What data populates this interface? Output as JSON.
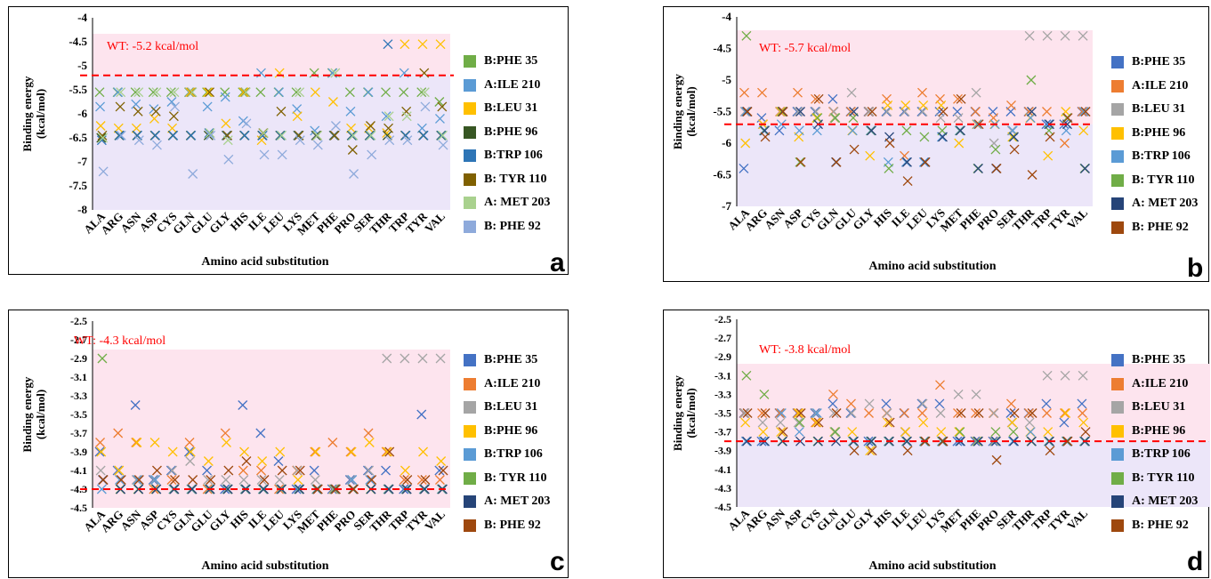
{
  "chart_data": [
    {
      "type": "scatter",
      "panel_label": "a",
      "ylabel": "Binding energy (kcal/mol)",
      "xlabel": "Amino acid substitution",
      "ylim": [
        -8,
        -4
      ],
      "yticks": [
        "-4",
        "-4.5",
        "-5",
        "-5.5",
        "-6",
        "-6.5",
        "-7",
        "-7.5",
        "-8"
      ],
      "categories": [
        "ALA",
        "ARG",
        "ASN",
        "ASP",
        "CYS",
        "GLN",
        "GLU",
        "GLY",
        "HIS",
        "ILE",
        "LEU",
        "LYS",
        "MET",
        "PHE",
        "PRO",
        "SER",
        "THR",
        "TRP",
        "TYR",
        "VAL"
      ],
      "wt_value": -5.2,
      "wt_label": "WT: -5.2 kcal/mol",
      "shaded_above": "#fde4ee",
      "shaded_below": "#ece6f9",
      "series": [
        {
          "name": "B:PHE 35",
          "color": "#70ad47",
          "values": [
            -5.55,
            -5.55,
            -5.55,
            -5.55,
            -5.55,
            -5.55,
            -5.55,
            -5.55,
            -5.55,
            -5.55,
            -5.55,
            -5.55,
            -5.15,
            -5.15,
            -5.55,
            -5.55,
            -5.55,
            -5.55,
            -5.55,
            -5.75
          ]
        },
        {
          "name": "A:ILE 210",
          "color": "#5b9bd5",
          "values": [
            -5.85,
            -5.55,
            -5.8,
            -5.9,
            -5.75,
            -5.55,
            -5.85,
            -5.65,
            -6.15,
            -5.15,
            -5.55,
            -5.9,
            -6.35,
            -5.15,
            -5.95,
            -5.55,
            -6.05,
            -5.15,
            -6.3,
            -6.1
          ]
        },
        {
          "name": "B:LEU 31",
          "color": "#ffc000",
          "values": [
            -6.25,
            -6.3,
            -6.3,
            -6.1,
            -6.3,
            -5.55,
            -5.55,
            -6.2,
            -5.55,
            -6.55,
            -5.15,
            -6.05,
            -5.55,
            -5.75,
            -6.3,
            -6.3,
            -6.4,
            -4.55,
            -4.55,
            -4.55
          ]
        },
        {
          "name": "B:PHE 96",
          "color": "#375623",
          "values": [
            -6.5,
            -6.45,
            -6.45,
            -6.45,
            -6.45,
            -6.45,
            -6.45,
            -6.45,
            -6.45,
            -6.45,
            -6.45,
            -6.45,
            -6.45,
            -6.45,
            -6.45,
            -6.45,
            -6.45,
            -6.45,
            -6.45,
            -6.45
          ]
        },
        {
          "name": "B:TRP 106",
          "color": "#2e75b6",
          "values": [
            -6.55,
            -6.45,
            -6.45,
            -6.45,
            -6.45,
            -6.45,
            -6.4,
            -6.45,
            -6.45,
            -6.45,
            -6.45,
            -6.45,
            -6.45,
            -6.45,
            -6.45,
            -6.45,
            -4.55,
            -6.45,
            -6.45,
            -6.45
          ]
        },
        {
          "name": "B: TYR 110",
          "color": "#7f6000",
          "values": [
            -6.45,
            -5.85,
            -5.95,
            -5.95,
            -6.05,
            -5.55,
            -5.55,
            -6.45,
            -5.55,
            -6.4,
            -5.95,
            -6.45,
            -6.45,
            -6.45,
            -6.75,
            -6.25,
            -6.3,
            -5.95,
            -5.15,
            -5.85
          ]
        },
        {
          "name": "A: MET 203",
          "color": "#a9d18e",
          "values": [
            -6.5,
            -5.55,
            -5.55,
            -5.55,
            -5.55,
            -5.55,
            -6.4,
            -6.55,
            -5.55,
            -6.4,
            -6.45,
            -5.55,
            -6.45,
            -5.15,
            -6.45,
            -6.45,
            -6.05,
            -6.05,
            -5.55,
            -6.45
          ]
        },
        {
          "name": "B: PHE 92",
          "color": "#8eaadb",
          "values": [
            -7.2,
            -6.45,
            -6.55,
            -6.65,
            -5.85,
            -7.25,
            -6.45,
            -6.95,
            -6.2,
            -6.85,
            -6.85,
            -6.55,
            -6.65,
            -6.25,
            -7.25,
            -6.85,
            -6.55,
            -6.55,
            -5.85,
            -6.65
          ]
        }
      ]
    },
    {
      "type": "scatter",
      "panel_label": "b",
      "ylabel": "Binding energy (kcal/mol)",
      "xlabel": "Amino acid substitution",
      "ylim": [
        -7,
        -4
      ],
      "yticks": [
        "-4",
        "-4.5",
        "-5",
        "-5.5",
        "-6",
        "-6.5",
        "-7"
      ],
      "categories": [
        "ALA",
        "ARG",
        "ASN",
        "ASP",
        "CYS",
        "GLN",
        "GLU",
        "GLY",
        "HIS",
        "ILE",
        "LEU",
        "LYS",
        "MET",
        "PHE",
        "PRO",
        "SER",
        "THR",
        "TRP",
        "TYR",
        "VAL"
      ],
      "wt_value": -5.7,
      "wt_label": "WT: -5.7 kcal/mol",
      "shaded_above": "#fde4ee",
      "shaded_below": "#ece6f9",
      "series": [
        {
          "name": "B:PHE 35",
          "color": "#4472c4",
          "values": [
            -6.4,
            -5.6,
            -5.8,
            -5.5,
            -5.5,
            -5.3,
            -5.5,
            -5.5,
            -5.5,
            -5.5,
            -5.5,
            -5.5,
            -5.5,
            -5.5,
            -5.5,
            -5.5,
            -5.5,
            -5.7,
            -5.7,
            -5.5
          ]
        },
        {
          "name": "A:ILE 210",
          "color": "#ed7d31",
          "values": [
            -5.2,
            -5.2,
            -5.5,
            -5.2,
            -5.3,
            -5.5,
            -5.5,
            -5.5,
            -5.3,
            -6.2,
            -5.2,
            -5.3,
            -5.3,
            -5.5,
            -5.6,
            -5.4,
            -5.5,
            -5.5,
            -6.0,
            -5.5
          ]
        },
        {
          "name": "B:LEU 31",
          "color": "#a5a5a5",
          "values": [
            -5.5,
            -5.7,
            -5.5,
            -5.5,
            -5.5,
            -5.5,
            -5.2,
            -5.5,
            -5.5,
            -5.5,
            -5.5,
            -5.6,
            -5.6,
            -5.2,
            -6.0,
            -5.8,
            -4.3,
            -4.3,
            -4.3,
            -4.3
          ]
        },
        {
          "name": "B:PHE 96",
          "color": "#ffc000",
          "values": [
            -6.0,
            -5.7,
            -5.5,
            -5.9,
            -5.6,
            -5.6,
            -5.8,
            -6.2,
            -5.4,
            -5.4,
            -5.4,
            -5.4,
            -6.0,
            -5.7,
            -5.7,
            -5.9,
            -5.6,
            -6.2,
            -5.5,
            -5.8
          ]
        },
        {
          "name": "B:TRP 106",
          "color": "#5b9bd5",
          "values": [
            -5.5,
            -5.8,
            -5.7,
            -5.8,
            -5.8,
            -5.6,
            -5.8,
            -5.8,
            -6.3,
            -6.3,
            -6.3,
            -5.9,
            -5.8,
            -5.7,
            -5.7,
            -5.8,
            -5.6,
            -5.7,
            -5.8,
            -5.5
          ]
        },
        {
          "name": "B: TYR 110",
          "color": "#70ad47",
          "values": [
            -4.3,
            -5.8,
            -5.5,
            -6.3,
            -5.6,
            -5.6,
            -5.6,
            -5.8,
            -6.4,
            -5.8,
            -5.9,
            -5.8,
            -5.8,
            -6.4,
            -6.1,
            -5.9,
            -5.0,
            -5.8,
            -5.6,
            -6.4
          ]
        },
        {
          "name": "A: MET 203",
          "color": "#264478",
          "values": [
            -5.5,
            -5.8,
            -5.5,
            -5.5,
            -5.7,
            -6.3,
            -5.5,
            -5.8,
            -5.9,
            -6.3,
            -6.3,
            -5.9,
            -5.8,
            -6.4,
            -6.4,
            -5.9,
            -5.5,
            -5.7,
            -5.7,
            -6.4
          ]
        },
        {
          "name": "B: PHE 92",
          "color": "#9e480e",
          "values": [
            -5.5,
            -5.9,
            -5.5,
            -6.3,
            -5.3,
            -6.3,
            -6.1,
            -5.5,
            -6.0,
            -6.6,
            -6.3,
            -5.5,
            -5.3,
            -5.7,
            -6.4,
            -6.1,
            -6.5,
            -5.9,
            -5.6,
            -5.5
          ]
        }
      ]
    },
    {
      "type": "scatter",
      "panel_label": "c",
      "ylabel": "Binding energy (kcal/mol)",
      "xlabel": "Amino acid substitution",
      "ylim": [
        -4.5,
        -2.5
      ],
      "yticks": [
        "-2.5",
        "-2.7",
        "-2.9",
        "-3.1",
        "-3.3",
        "-3.5",
        "-3.7",
        "-3.9",
        "-4.1",
        "-4.3",
        "-4.5"
      ],
      "categories": [
        "ALA",
        "ARG",
        "ASN",
        "ASP",
        "CYS",
        "GLN",
        "GLU",
        "GLY",
        "HIS",
        "ILE",
        "LEU",
        "LYS",
        "MET",
        "PHE",
        "PRO",
        "SER",
        "THR",
        "TRP",
        "TYR",
        "VAL"
      ],
      "wt_value": -4.3,
      "wt_label": "WT: -4.3 kcal/mol",
      "shaded_above": "#fde4ee",
      "shaded_below": "#fde4ee",
      "series": [
        {
          "name": "B:PHE 35",
          "color": "#4472c4",
          "values": [
            -3.9,
            -4.1,
            -3.4,
            -4.2,
            -4.1,
            -3.9,
            -4.1,
            -4.3,
            -3.4,
            -3.7,
            -4.0,
            -4.3,
            -4.1,
            -4.3,
            -4.2,
            -4.1,
            -4.1,
            -4.3,
            -3.5,
            -4.1
          ]
        },
        {
          "name": "A:ILE 210",
          "color": "#ed7d31",
          "values": [
            -3.8,
            -3.7,
            -3.8,
            -4.3,
            -4.2,
            -3.8,
            -4.3,
            -3.7,
            -4.1,
            -4.1,
            -4.3,
            -4.1,
            -3.9,
            -3.8,
            -3.9,
            -3.7,
            -3.9,
            -4.2,
            -4.2,
            -4.2
          ]
        },
        {
          "name": "B:LEU 31",
          "color": "#a5a5a5",
          "values": [
            -4.1,
            -4.1,
            -4.2,
            -4.2,
            -4.1,
            -4.0,
            -4.2,
            -4.2,
            -4.2,
            -4.2,
            -4.2,
            -4.1,
            -4.2,
            -4.3,
            -4.2,
            -4.1,
            -2.9,
            -2.9,
            -2.9,
            -2.9
          ]
        },
        {
          "name": "B:PHE 96",
          "color": "#ffc000",
          "values": [
            -3.9,
            -4.1,
            -3.8,
            -3.8,
            -3.9,
            -3.9,
            -4.0,
            -3.8,
            -3.9,
            -4.0,
            -3.9,
            -4.2,
            -3.9,
            -4.3,
            -3.9,
            -3.8,
            -3.9,
            -4.1,
            -3.9,
            -4.0
          ]
        },
        {
          "name": "B:TRP 106",
          "color": "#5b9bd5",
          "values": [
            -4.3,
            -4.2,
            -4.2,
            -4.2,
            -4.3,
            -4.3,
            -4.3,
            -4.3,
            -4.3,
            -4.3,
            -4.3,
            -4.3,
            -4.3,
            -4.3,
            -4.2,
            -4.2,
            -4.3,
            -4.3,
            -4.3,
            -4.3
          ]
        },
        {
          "name": "B: TYR 110",
          "color": "#70ad47",
          "values": [
            -2.9,
            -4.3,
            -4.3,
            -4.3,
            -4.3,
            -4.3,
            -4.3,
            -4.3,
            -4.3,
            -4.3,
            -4.3,
            -4.3,
            -4.3,
            -4.3,
            -4.3,
            -4.3,
            -4.3,
            -4.3,
            -4.3,
            -4.3
          ]
        },
        {
          "name": "A: MET 203",
          "color": "#264478",
          "values": [
            -4.2,
            -4.3,
            -4.3,
            -4.3,
            -4.3,
            -4.3,
            -4.3,
            -4.3,
            -4.3,
            -4.3,
            -4.3,
            -4.3,
            -4.3,
            -4.3,
            -4.3,
            -4.3,
            -4.3,
            -4.3,
            -4.3,
            -4.3
          ]
        },
        {
          "name": "B: PHE 92",
          "color": "#9e480e",
          "values": [
            -4.2,
            -4.2,
            -4.2,
            -4.1,
            -4.2,
            -4.2,
            -4.2,
            -4.1,
            -4.0,
            -4.2,
            -4.1,
            -4.1,
            -4.3,
            -4.3,
            -4.3,
            -4.2,
            -3.9,
            -4.2,
            -4.2,
            -4.1
          ]
        }
      ]
    },
    {
      "type": "scatter",
      "panel_label": "d",
      "ylabel": "Binding energy (kcal/mol)",
      "xlabel": "Amino acid substitution",
      "ylim": [
        -4.5,
        -2.5
      ],
      "yticks": [
        "-2.5",
        "-2.7",
        "-2.9",
        "-3.1",
        "-3.3",
        "-3.5",
        "-3.7",
        "-3.9",
        "-4.1",
        "-4.3",
        "-4.5"
      ],
      "categories": [
        "ALA",
        "ARG",
        "ASN",
        "ASP",
        "CYS",
        "GLN",
        "GLU",
        "GLY",
        "HIS",
        "ILE",
        "LEU",
        "LYS",
        "MET",
        "PHE",
        "PRO",
        "SER",
        "THR",
        "TRP",
        "TYR",
        "VAL"
      ],
      "wt_value": -3.8,
      "wt_label": "WT: -3.8 kcal/mol",
      "shaded_above": "#fde4ee",
      "shaded_below": "#ece6f9",
      "series": [
        {
          "name": "B:PHE 35",
          "color": "#4472c4",
          "values": [
            -3.5,
            -3.8,
            -3.5,
            -3.5,
            -3.5,
            -3.4,
            -3.5,
            -3.8,
            -3.4,
            -3.5,
            -3.4,
            -3.4,
            -3.8,
            -3.8,
            -3.8,
            -3.5,
            -3.5,
            -3.4,
            -3.6,
            -3.4
          ]
        },
        {
          "name": "A:ILE 210",
          "color": "#ed7d31",
          "values": [
            -3.5,
            -3.5,
            -3.5,
            -3.5,
            -3.6,
            -3.3,
            -3.4,
            -3.5,
            -3.5,
            -3.5,
            -3.5,
            -3.2,
            -3.5,
            -3.5,
            -3.5,
            -3.4,
            -3.5,
            -3.5,
            -3.5,
            -3.5
          ]
        },
        {
          "name": "B:LEU 31",
          "color": "#a5a5a5",
          "values": [
            -3.5,
            -3.6,
            -3.6,
            -3.6,
            -3.5,
            -3.5,
            -3.5,
            -3.4,
            -3.5,
            -3.7,
            -3.4,
            -3.5,
            -3.3,
            -3.3,
            -3.5,
            -3.6,
            -3.6,
            -3.1,
            -3.1,
            -3.1
          ]
        },
        {
          "name": "B:PHE 96",
          "color": "#ffc000",
          "values": [
            -3.6,
            -3.7,
            -3.7,
            -3.5,
            -3.6,
            -3.7,
            -3.7,
            -3.9,
            -3.6,
            -3.7,
            -3.6,
            -3.7,
            -3.7,
            -3.8,
            -3.8,
            -3.6,
            -3.7,
            -3.7,
            -3.5,
            -3.6
          ]
        },
        {
          "name": "B:TRP 106",
          "color": "#5b9bd5",
          "values": [
            -3.8,
            -3.8,
            -3.5,
            -3.7,
            -3.5,
            -3.7,
            -3.8,
            -3.8,
            -3.8,
            -3.8,
            -3.8,
            -3.8,
            -3.8,
            -3.8,
            -3.8,
            -3.8,
            -3.7,
            -3.8,
            -3.8,
            -3.8
          ]
        },
        {
          "name": "B: TYR 110",
          "color": "#70ad47",
          "values": [
            -3.1,
            -3.3,
            -3.8,
            -3.6,
            -3.8,
            -3.7,
            -3.8,
            -3.8,
            -3.8,
            -3.8,
            -3.8,
            -3.8,
            -3.7,
            -3.8,
            -3.7,
            -3.7,
            -3.8,
            -3.8,
            -3.8,
            -3.8
          ]
        },
        {
          "name": "A: MET 203",
          "color": "#264478",
          "values": [
            -3.8,
            -3.8,
            -3.8,
            -3.8,
            -3.8,
            -3.8,
            -3.8,
            -3.8,
            -3.8,
            -3.8,
            -3.8,
            -3.8,
            -3.8,
            -3.8,
            -3.8,
            -3.8,
            -3.8,
            -3.8,
            -3.8,
            -3.8
          ]
        },
        {
          "name": "B: PHE 92",
          "color": "#9e480e",
          "values": [
            -3.5,
            -3.5,
            -3.7,
            -3.5,
            -3.6,
            -3.5,
            -3.9,
            -3.9,
            -3.6,
            -3.9,
            -3.8,
            -3.8,
            -3.5,
            -3.5,
            -4.0,
            -3.5,
            -3.5,
            -3.9,
            -3.8,
            -3.7
          ]
        }
      ]
    }
  ]
}
